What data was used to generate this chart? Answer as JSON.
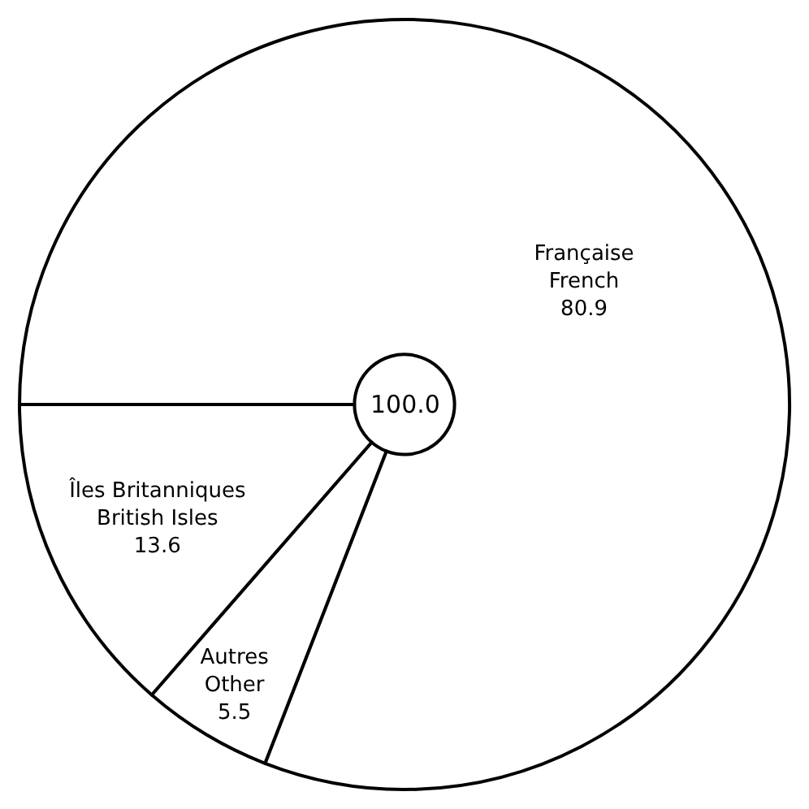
{
  "chart_data": {
    "type": "donut",
    "categories": [
      "Française\nFrench",
      "Autres\nOther",
      "Îles Britanniques\nBritish Isles"
    ],
    "values": [
      80.9,
      5.5,
      13.6
    ],
    "colors": [
      "#ffffff",
      "#ffffff",
      "#ffffff"
    ],
    "data_labels": true,
    "legend": false,
    "annotations": [
      "100.0"
    ]
  }
}
